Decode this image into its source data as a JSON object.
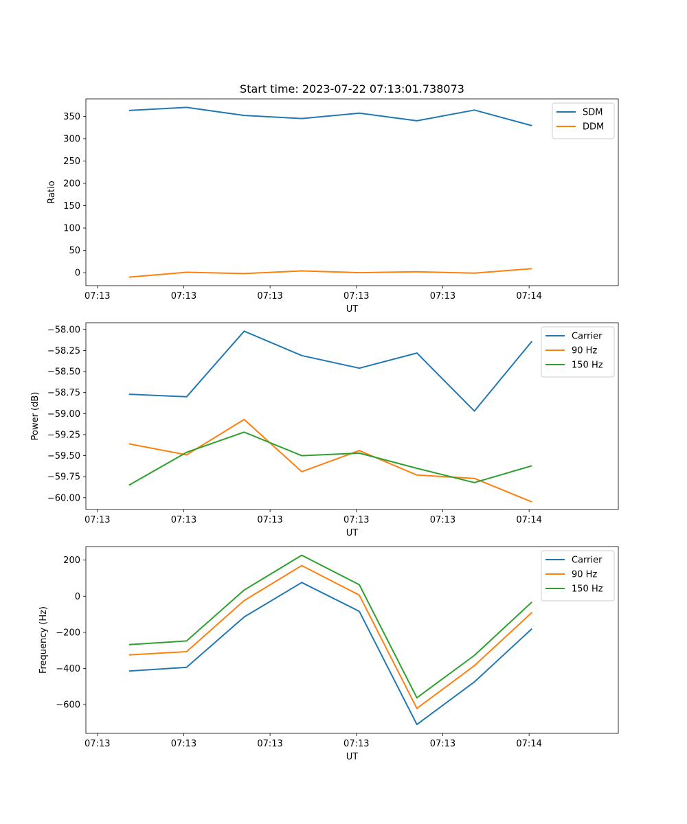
{
  "figure": {
    "title": "Start time: 2023-07-22 07:13:01.738073"
  },
  "chart_data": [
    {
      "type": "line",
      "title": "Start time: 2023-07-22 07:13:01.738073",
      "xlabel": "UT",
      "ylabel": "Ratio",
      "xlim": [
        -0.75,
        8.5
      ],
      "ylim": [
        -29,
        389
      ],
      "x": [
        0,
        1,
        2,
        3,
        4,
        5,
        6,
        7
      ],
      "xticks": [
        {
          "value": -0.55,
          "label": "07:13"
        },
        {
          "value": 0.95,
          "label": "07:13"
        },
        {
          "value": 2.45,
          "label": "07:13"
        },
        {
          "value": 3.95,
          "label": "07:13"
        },
        {
          "value": 5.45,
          "label": "07:13"
        },
        {
          "value": 6.95,
          "label": "07:14"
        }
      ],
      "yticks": [
        0,
        50,
        100,
        150,
        200,
        250,
        300,
        350
      ],
      "yticklabels": [
        "0",
        "50",
        "100",
        "150",
        "200",
        "250",
        "300",
        "350"
      ],
      "legend": "top-right",
      "series": [
        {
          "name": "SDM",
          "color": "#1f77b4",
          "values": [
            363,
            370,
            352,
            345,
            357,
            340,
            364,
            329
          ]
        },
        {
          "name": "DDM",
          "color": "#ff7f0e",
          "values": [
            -10,
            1,
            -2,
            4,
            0,
            2,
            -1,
            9
          ]
        }
      ]
    },
    {
      "type": "line",
      "title": "",
      "xlabel": "UT",
      "ylabel": "Power (dB)",
      "xlim": [
        -0.75,
        8.5
      ],
      "ylim": [
        -60.14,
        -57.92
      ],
      "x": [
        0,
        1,
        2,
        3,
        4,
        5,
        6,
        7
      ],
      "xticks": [
        {
          "value": -0.55,
          "label": "07:13"
        },
        {
          "value": 0.95,
          "label": "07:13"
        },
        {
          "value": 2.45,
          "label": "07:13"
        },
        {
          "value": 3.95,
          "label": "07:13"
        },
        {
          "value": 5.45,
          "label": "07:13"
        },
        {
          "value": 6.95,
          "label": "07:14"
        }
      ],
      "yticks": [
        -60.0,
        -59.75,
        -59.5,
        -59.25,
        -59.0,
        -58.75,
        -58.5,
        -58.25,
        -58.0
      ],
      "yticklabels": [
        "−60.00",
        "−59.75",
        "−59.50",
        "−59.25",
        "−59.00",
        "−58.75",
        "−58.50",
        "−58.25",
        "−58.00"
      ],
      "legend": "top-right",
      "series": [
        {
          "name": "Carrier",
          "color": "#1f77b4",
          "values": [
            -58.77,
            -58.8,
            -58.02,
            -58.31,
            -58.46,
            -58.28,
            -58.97,
            -58.14
          ]
        },
        {
          "name": "90 Hz",
          "color": "#ff7f0e",
          "values": [
            -59.36,
            -59.49,
            -59.07,
            -59.69,
            -59.44,
            -59.73,
            -59.77,
            -60.05
          ]
        },
        {
          "name": "150 Hz",
          "color": "#2ca02c",
          "values": [
            -59.85,
            -59.46,
            -59.22,
            -59.5,
            -59.47,
            -59.65,
            -59.82,
            -59.62
          ]
        }
      ]
    },
    {
      "type": "line",
      "title": "",
      "xlabel": "UT",
      "ylabel": "Frequency (Hz)",
      "xlim": [
        -0.75,
        8.5
      ],
      "ylim": [
        -760,
        275
      ],
      "x": [
        0,
        1,
        2,
        3,
        4,
        5,
        6,
        7
      ],
      "xticks": [
        {
          "value": -0.55,
          "label": "07:13"
        },
        {
          "value": 0.95,
          "label": "07:13"
        },
        {
          "value": 2.45,
          "label": "07:13"
        },
        {
          "value": 3.95,
          "label": "07:13"
        },
        {
          "value": 5.45,
          "label": "07:13"
        },
        {
          "value": 6.95,
          "label": "07:14"
        }
      ],
      "yticks": [
        -600,
        -400,
        -200,
        0,
        200
      ],
      "yticklabels": [
        "−600",
        "−400",
        "−200",
        "0",
        "200"
      ],
      "legend": "top-right",
      "series": [
        {
          "name": "Carrier",
          "color": "#1f77b4",
          "values": [
            -415,
            -394,
            -115,
            76,
            -84,
            -711,
            -475,
            -180
          ]
        },
        {
          "name": "90 Hz",
          "color": "#ff7f0e",
          "values": [
            -325,
            -307,
            -24,
            170,
            6,
            -622,
            -385,
            -90
          ]
        },
        {
          "name": "150 Hz",
          "color": "#2ca02c",
          "values": [
            -268,
            -248,
            34,
            227,
            64,
            -563,
            -328,
            -32
          ]
        }
      ]
    }
  ]
}
